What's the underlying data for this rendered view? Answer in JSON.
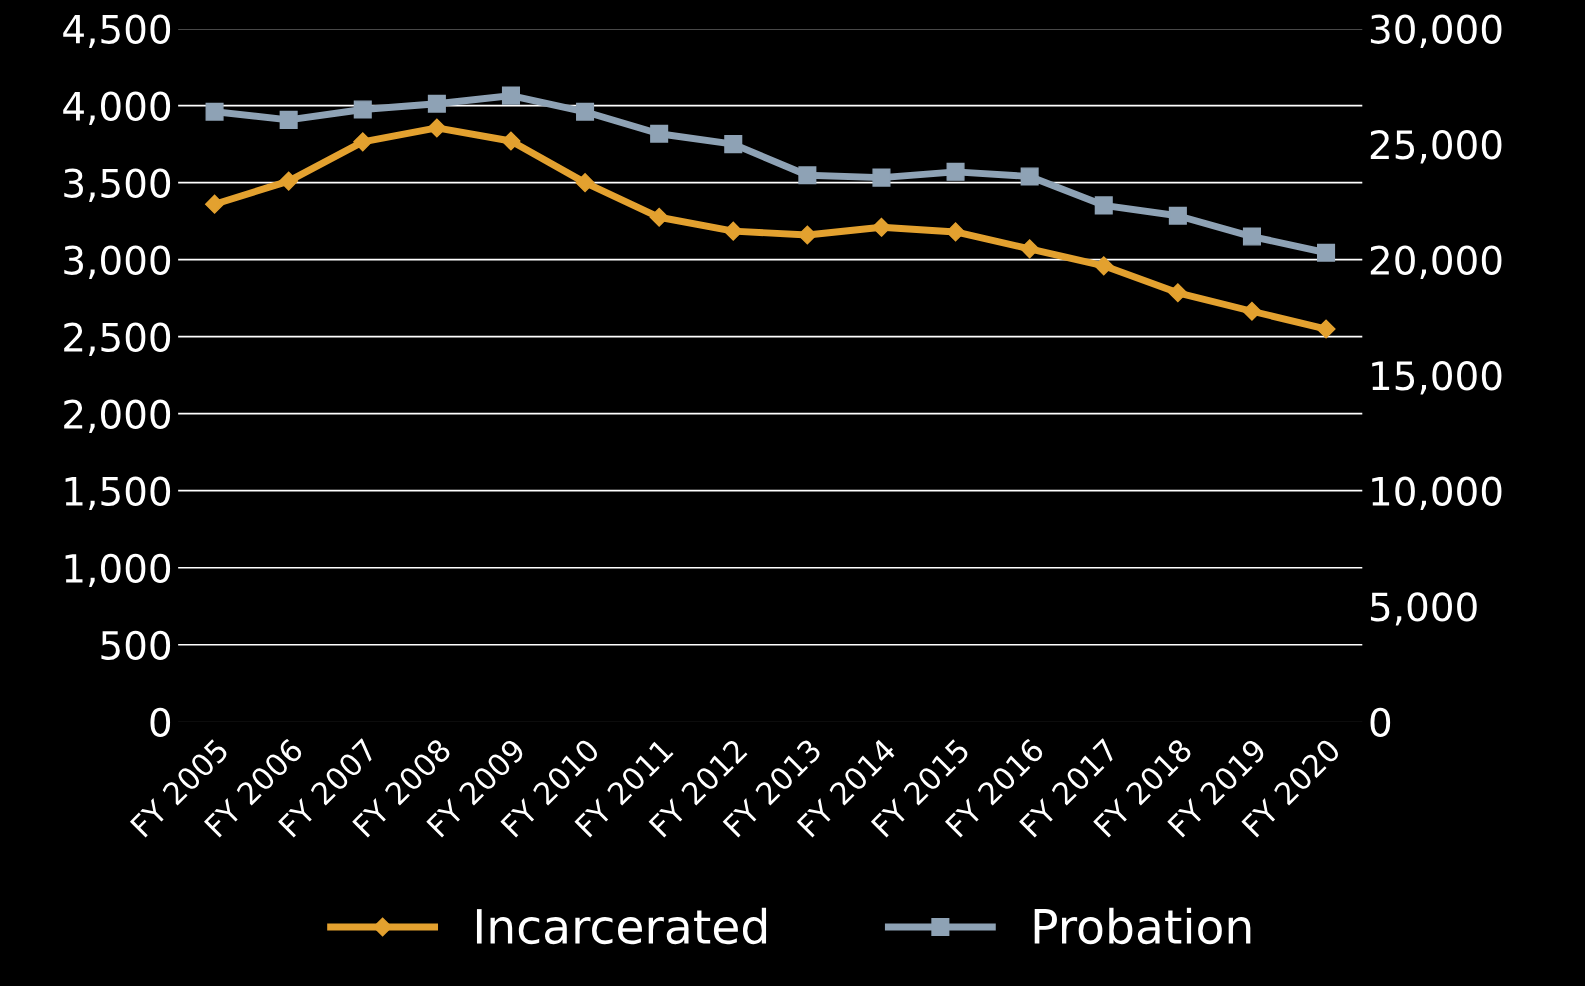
{
  "chart_data": {
    "type": "line",
    "categories": [
      "FY 2005",
      "FY 2006",
      "FY 2007",
      "FY 2008",
      "FY 2009",
      "FY 2010",
      "FY 2011",
      "FY 2012",
      "FY 2013",
      "FY 2014",
      "FY 2015",
      "FY 2016",
      "FY 2017",
      "FY 2018",
      "FY 2019",
      "FY 2020"
    ],
    "series": [
      {
        "name": "Incarcerated",
        "color": "#e3a12f",
        "marker": "diamond",
        "values": [
          3360,
          3510,
          3765,
          3855,
          3770,
          3500,
          3275,
          3185,
          3160,
          3210,
          3180,
          3070,
          2960,
          2785,
          2665,
          2550
        ]
      },
      {
        "name": "Probation",
        "color": "#8ea2b5",
        "marker": "square",
        "axis": "y2",
        "values": [
          26400,
          26050,
          26500,
          26750,
          27100,
          26400,
          25450,
          25000,
          23650,
          23550,
          23800,
          23600,
          22350,
          21900,
          21000,
          20300
        ]
      }
    ],
    "ylim": [
      0,
      4500
    ],
    "yticks": [
      {
        "value": 0,
        "label": "0"
      },
      {
        "value": 500,
        "label": "500"
      },
      {
        "value": 1000,
        "label": "1,000"
      },
      {
        "value": 1500,
        "label": "1,500"
      },
      {
        "value": 2000,
        "label": "2,000"
      },
      {
        "value": 2500,
        "label": "2,500"
      },
      {
        "value": 3000,
        "label": "3,000"
      },
      {
        "value": 3500,
        "label": "3,500"
      },
      {
        "value": 4000,
        "label": "4,000"
      },
      {
        "value": 4500,
        "label": "4,500"
      }
    ],
    "y2lim": [
      0,
      30000
    ],
    "y2ticks": [
      {
        "value": 0,
        "label": "0"
      },
      {
        "value": 5000,
        "label": "5,000"
      },
      {
        "value": 10000,
        "label": "10,000"
      },
      {
        "value": 15000,
        "label": "15,000"
      },
      {
        "value": 20000,
        "label": "20,000"
      },
      {
        "value": 25000,
        "label": "25,000"
      },
      {
        "value": 30000,
        "label": "30,000"
      }
    ],
    "grid": "y",
    "legend": "bottom",
    "line_style": "solid"
  }
}
